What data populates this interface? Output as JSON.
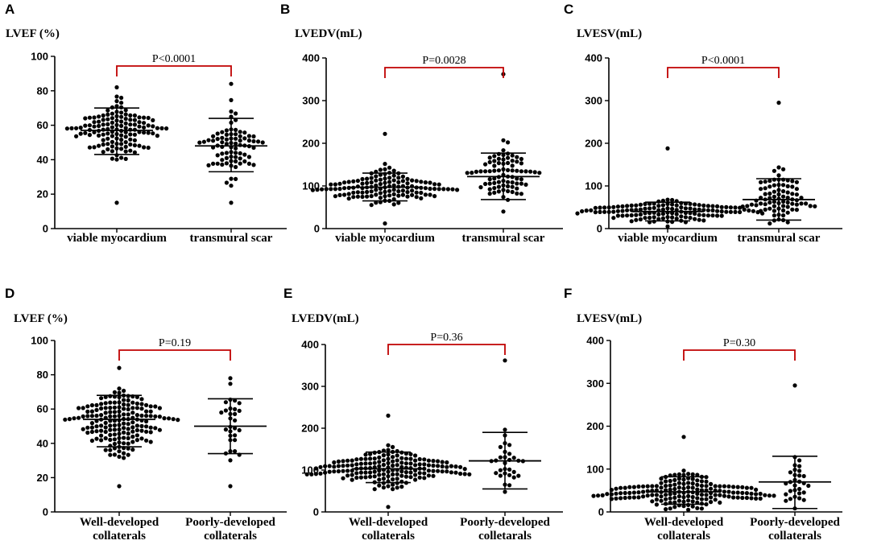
{
  "figure": {
    "width": 1084,
    "height": 692
  },
  "chart_data": [
    {
      "type": "scatter",
      "panel_letter": "A",
      "ylabel": "LVEF (%)",
      "ylim": [
        0,
        100
      ],
      "yticks": [
        0,
        20,
        40,
        60,
        80,
        100
      ],
      "categories": [
        "viable myocardium",
        "transmural scar"
      ],
      "p_value": "P<0.0001",
      "groups": [
        {
          "name": "viable myocardium",
          "n": 130,
          "mean": 57,
          "sd_low": 43,
          "sd_high": 70,
          "min": 15,
          "max": 82
        },
        {
          "name": "transmural scar",
          "n": 80,
          "mean": 48,
          "sd_low": 33,
          "sd_high": 64,
          "min": 15,
          "max": 84
        }
      ]
    },
    {
      "type": "scatter",
      "panel_letter": "B",
      "ylabel": "LVEDV(mL)",
      "ylim": [
        0,
        400
      ],
      "yticks": [
        0,
        100,
        200,
        300,
        400
      ],
      "categories": [
        "viable myocardium",
        "transmural scar"
      ],
      "p_value": "P=0.0028",
      "groups": [
        {
          "name": "viable myocardium",
          "n": 130,
          "mean": 97,
          "sd_low": 65,
          "sd_high": 130,
          "min": 12,
          "max": 222
        },
        {
          "name": "transmural scar",
          "n": 80,
          "mean": 122,
          "sd_low": 68,
          "sd_high": 177,
          "min": 40,
          "max": 362
        }
      ]
    },
    {
      "type": "scatter",
      "panel_letter": "C",
      "ylabel": "LVESV(mL)",
      "ylim": [
        0,
        400
      ],
      "yticks": [
        0,
        100,
        200,
        300,
        400
      ],
      "categories": [
        "viable myocardium",
        "transmural scar"
      ],
      "p_value": "P<0.0001",
      "groups": [
        {
          "name": "viable myocardium",
          "n": 130,
          "mean": 40,
          "sd_low": 18,
          "sd_high": 62,
          "min": 5,
          "max": 188
        },
        {
          "name": "transmural scar",
          "n": 80,
          "mean": 68,
          "sd_low": 20,
          "sd_high": 117,
          "min": 12,
          "max": 295
        }
      ]
    },
    {
      "type": "scatter",
      "panel_letter": "D",
      "ylabel": "LVEF (%)",
      "ylim": [
        0,
        100
      ],
      "yticks": [
        0,
        20,
        40,
        60,
        80,
        100
      ],
      "categories": [
        "Well-developed|collaterals",
        "Poorly-developed|collaterals"
      ],
      "p_value": "P=0.19",
      "groups": [
        {
          "name": "Well-developed collaterals",
          "n": 170,
          "mean": 54,
          "sd_low": 38,
          "sd_high": 68,
          "min": 15,
          "max": 84
        },
        {
          "name": "Poorly-developed collaterals",
          "n": 30,
          "mean": 50,
          "sd_low": 34,
          "sd_high": 66,
          "min": 15,
          "max": 78
        }
      ]
    },
    {
      "type": "scatter",
      "panel_letter": "E",
      "ylabel": "LVEDV(mL)",
      "ylim": [
        0,
        400
      ],
      "yticks": [
        0,
        100,
        200,
        300,
        400
      ],
      "categories": [
        "Well-developed|collaterals",
        "Poorly-developed|colletarals"
      ],
      "p_value": "P=0.36",
      "groups": [
        {
          "name": "Well-developed collaterals",
          "n": 170,
          "mean": 103,
          "sd_low": 70,
          "sd_high": 143,
          "min": 12,
          "max": 230
        },
        {
          "name": "Poorly-developed colletarals",
          "n": 30,
          "mean": 122,
          "sd_low": 55,
          "sd_high": 190,
          "min": 48,
          "max": 362
        }
      ]
    },
    {
      "type": "scatter",
      "panel_letter": "F",
      "ylabel": "LVESV(mL)",
      "ylim": [
        0,
        400
      ],
      "yticks": [
        0,
        100,
        200,
        300,
        400
      ],
      "categories": [
        "Well-developed|collaterals",
        "Poorly-developed|collaterals"
      ],
      "p_value": "P=0.30",
      "groups": [
        {
          "name": "Well-developed collaterals",
          "n": 170,
          "mean": 47,
          "sd_low": 18,
          "sd_high": 82,
          "min": 5,
          "max": 175
        },
        {
          "name": "Poorly-developed collaterals",
          "n": 30,
          "mean": 70,
          "sd_low": 8,
          "sd_high": 130,
          "min": 8,
          "max": 295
        }
      ]
    }
  ]
}
